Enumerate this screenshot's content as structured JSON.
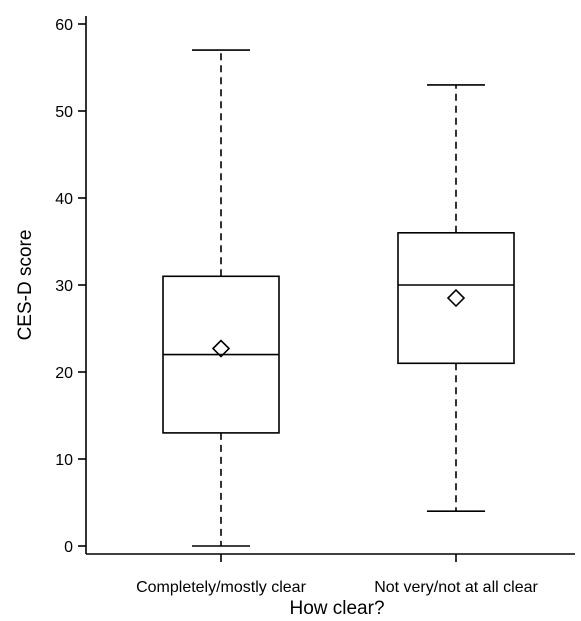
{
  "chart_data": {
    "type": "boxplot",
    "xlabel": "How clear?",
    "ylabel": "CES-D score",
    "ylim": [
      0,
      60
    ],
    "yticks": [
      0,
      10,
      20,
      30,
      40,
      50,
      60
    ],
    "grid": false,
    "legend": "none",
    "categories": [
      "Completely/mostly clear",
      "Not very/not at all clear"
    ],
    "boxes": [
      {
        "min": 0,
        "q1": 13,
        "median": 22,
        "q3": 31,
        "max": 57,
        "mean": 22.7
      },
      {
        "min": 4,
        "q1": 21,
        "median": 30,
        "q3": 36,
        "max": 53,
        "mean": 28.5
      }
    ]
  }
}
